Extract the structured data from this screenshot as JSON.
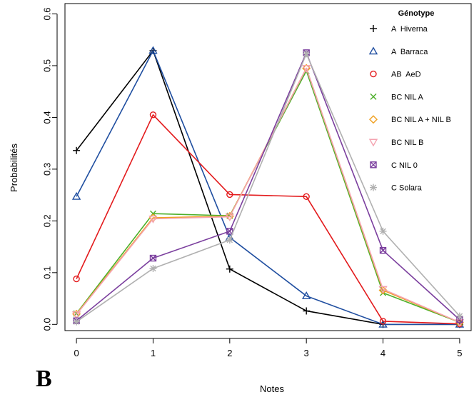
{
  "chart_data": {
    "type": "line",
    "title": "",
    "panel_label": "B",
    "xlabel": "Notes",
    "ylabel": "Probabilités",
    "x": [
      0,
      1,
      2,
      3,
      4,
      5
    ],
    "x_ticks": [
      0,
      1,
      2,
      3,
      4,
      5
    ],
    "y_ticks": [
      0.0,
      0.1,
      0.2,
      0.3,
      0.4,
      0.5,
      0.6
    ],
    "y_tick_labels": [
      "0.0",
      "0.1",
      "0.2",
      "0.3",
      "0.4",
      "0.5",
      "0.6"
    ],
    "xlim": [
      -0.15,
      5.15
    ],
    "ylim": [
      -0.012,
      0.62
    ],
    "grid": false,
    "legend_placement": "top-right",
    "legend_title": "Génotype",
    "series": [
      {
        "name": "A  Hiverna",
        "color": "#000000",
        "marker": "plus",
        "values": [
          0.336,
          0.529,
          0.107,
          0.026,
          0.0,
          0.0
        ]
      },
      {
        "name": "A  Barraca",
        "color": "#1f4ea0",
        "marker": "triangle-up",
        "values": [
          0.247,
          0.529,
          0.168,
          0.055,
          0.0,
          0.0
        ]
      },
      {
        "name": "AB  AeD",
        "color": "#e31a1c",
        "marker": "circle",
        "values": [
          0.088,
          0.405,
          0.251,
          0.247,
          0.006,
          0.001
        ]
      },
      {
        "name": "BC NIL A",
        "color": "#4daf2a",
        "marker": "x",
        "values": [
          0.021,
          0.214,
          0.21,
          0.49,
          0.061,
          0.004
        ]
      },
      {
        "name": "BC NIL A + NIL B",
        "color": "#f0a020",
        "marker": "diamond",
        "values": [
          0.02,
          0.206,
          0.209,
          0.495,
          0.066,
          0.004
        ]
      },
      {
        "name": "BC NIL B",
        "color": "#f4a3b0",
        "marker": "triangle-down",
        "values": [
          0.019,
          0.204,
          0.208,
          0.495,
          0.068,
          0.004
        ]
      },
      {
        "name": "C NIL 0",
        "color": "#7b3f9e",
        "marker": "square-x",
        "values": [
          0.007,
          0.128,
          0.18,
          0.525,
          0.143,
          0.009
        ]
      },
      {
        "name": "C Solara",
        "color": "#b0b0b0",
        "marker": "asterisk",
        "values": [
          0.005,
          0.108,
          0.163,
          0.523,
          0.18,
          0.016
        ]
      }
    ]
  }
}
